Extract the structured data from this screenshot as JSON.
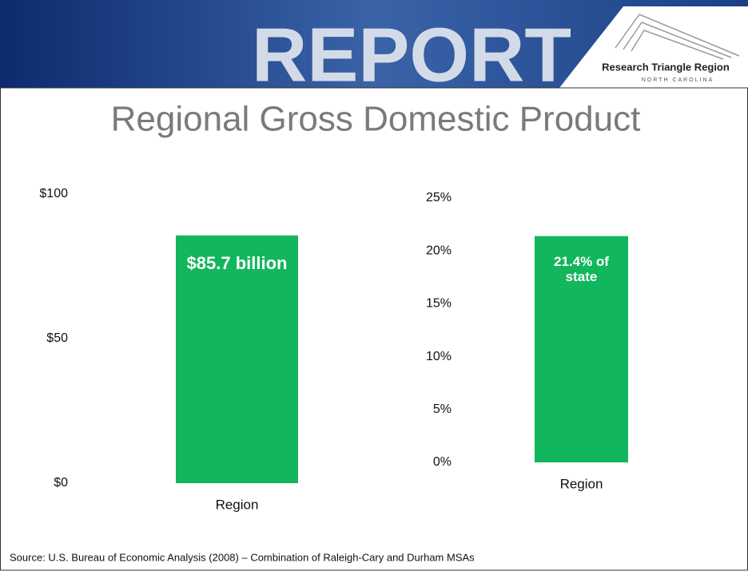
{
  "header": {
    "banner": "REPORT",
    "logo_title": "Research Triangle Region",
    "logo_subtitle": "NORTH CAROLINA"
  },
  "title": "Regional Gross Domestic Product",
  "chart_data": [
    {
      "type": "bar",
      "categories": [
        "Region"
      ],
      "values": [
        85.7
      ],
      "value_labels": [
        "$85.7 billion"
      ],
      "color": "#12b65c",
      "ylim": [
        0,
        100
      ],
      "yticks": [
        {
          "value": 0,
          "label": "$0"
        },
        {
          "value": 50,
          "label": "$50"
        },
        {
          "value": 100,
          "label": "$100"
        }
      ]
    },
    {
      "type": "bar",
      "categories": [
        "Region"
      ],
      "values": [
        21.4
      ],
      "value_labels": [
        "21.4% of state"
      ],
      "color": "#12b65c",
      "ylim": [
        0,
        25
      ],
      "yticks": [
        {
          "value": 0,
          "label": "0%"
        },
        {
          "value": 5,
          "label": "5%"
        },
        {
          "value": 10,
          "label": "10%"
        },
        {
          "value": 15,
          "label": "15%"
        },
        {
          "value": 20,
          "label": "20%"
        },
        {
          "value": 25,
          "label": "25%"
        }
      ]
    }
  ],
  "source": "Source: U.S. Bureau of Economic Analysis (2008) – Combination of Raleigh-Cary and Durham MSAs"
}
